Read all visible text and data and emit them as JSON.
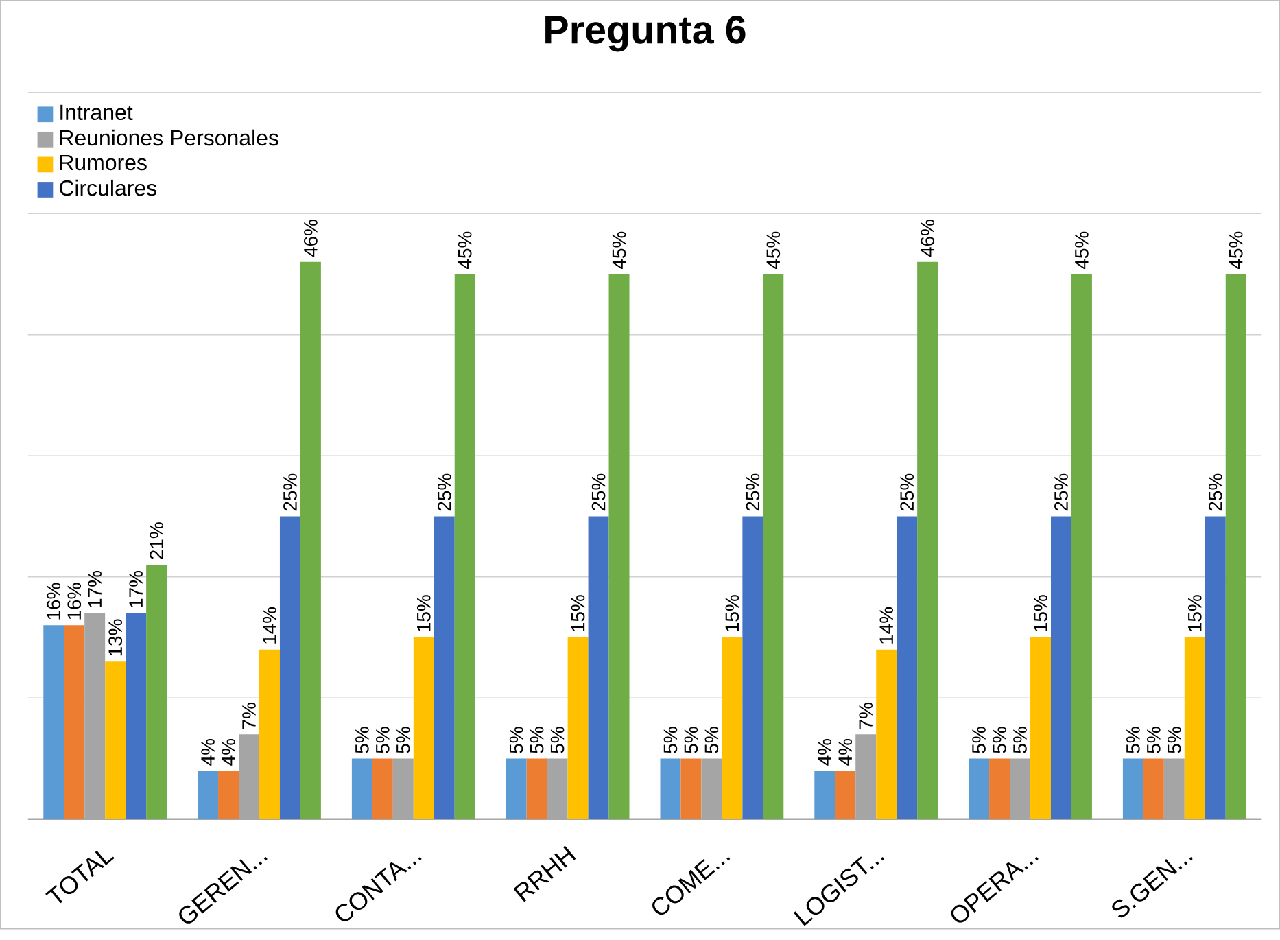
{
  "chart_data": {
    "type": "bar",
    "title": "Pregunta 6",
    "categories": [
      "TOTAL",
      "GEREN...",
      "CONTA...",
      "RRHH",
      "COME...",
      "LOGIST...",
      "OPERA...",
      "S.GEN..."
    ],
    "series": [
      {
        "name": "Intranet",
        "color": "#5b9bd5",
        "values": [
          16,
          4,
          5,
          5,
          5,
          4,
          5,
          5
        ],
        "value_labels": [
          "16%",
          "4%",
          "5%",
          "5%",
          "5%",
          "4%",
          "5%",
          "5%"
        ]
      },
      {
        "color": "#ed7d31",
        "values": [
          16,
          4,
          5,
          5,
          5,
          4,
          5,
          5
        ],
        "value_labels": [
          "16%",
          "4%",
          "5%",
          "5%",
          "5%",
          "4%",
          "5%",
          "5%"
        ]
      },
      {
        "name": "Reuniones Personales",
        "color": "#a5a5a5",
        "values": [
          17,
          7,
          5,
          5,
          5,
          7,
          5,
          5
        ],
        "value_labels": [
          "17%",
          "7%",
          "5%",
          "5%",
          "5%",
          "7%",
          "5%",
          "5%"
        ]
      },
      {
        "name": "Rumores",
        "color": "#ffc000",
        "values": [
          13,
          14,
          15,
          15,
          15,
          14,
          15,
          15
        ],
        "value_labels": [
          "13%",
          "14%",
          "15%",
          "15%",
          "15%",
          "14%",
          "15%",
          "15%"
        ]
      },
      {
        "name": "Circulares",
        "color": "#4472c4",
        "values": [
          17,
          25,
          25,
          25,
          25,
          25,
          25,
          25
        ],
        "value_labels": [
          "17%",
          "25%",
          "25%",
          "25%",
          "25%",
          "25%",
          "25%",
          "25%"
        ]
      },
      {
        "color": "#70ad47",
        "values": [
          21,
          46,
          45,
          45,
          45,
          46,
          45,
          45
        ],
        "value_labels": [
          "21%",
          "46%",
          "45%",
          "45%",
          "45%",
          "46%",
          "45%",
          "45%"
        ]
      }
    ],
    "ylim": [
      0,
      60
    ],
    "yticks": [
      {
        "value": 0,
        "label": null
      },
      {
        "value": 10,
        "label": null
      },
      {
        "value": 20,
        "label": null
      },
      {
        "value": 30,
        "label": null
      },
      {
        "value": 40,
        "label": null
      },
      {
        "value": 50,
        "label": null
      },
      {
        "value": 60,
        "label": null
      }
    ],
    "grid": "y",
    "legend": "top left",
    "tick_labels": "x"
  }
}
